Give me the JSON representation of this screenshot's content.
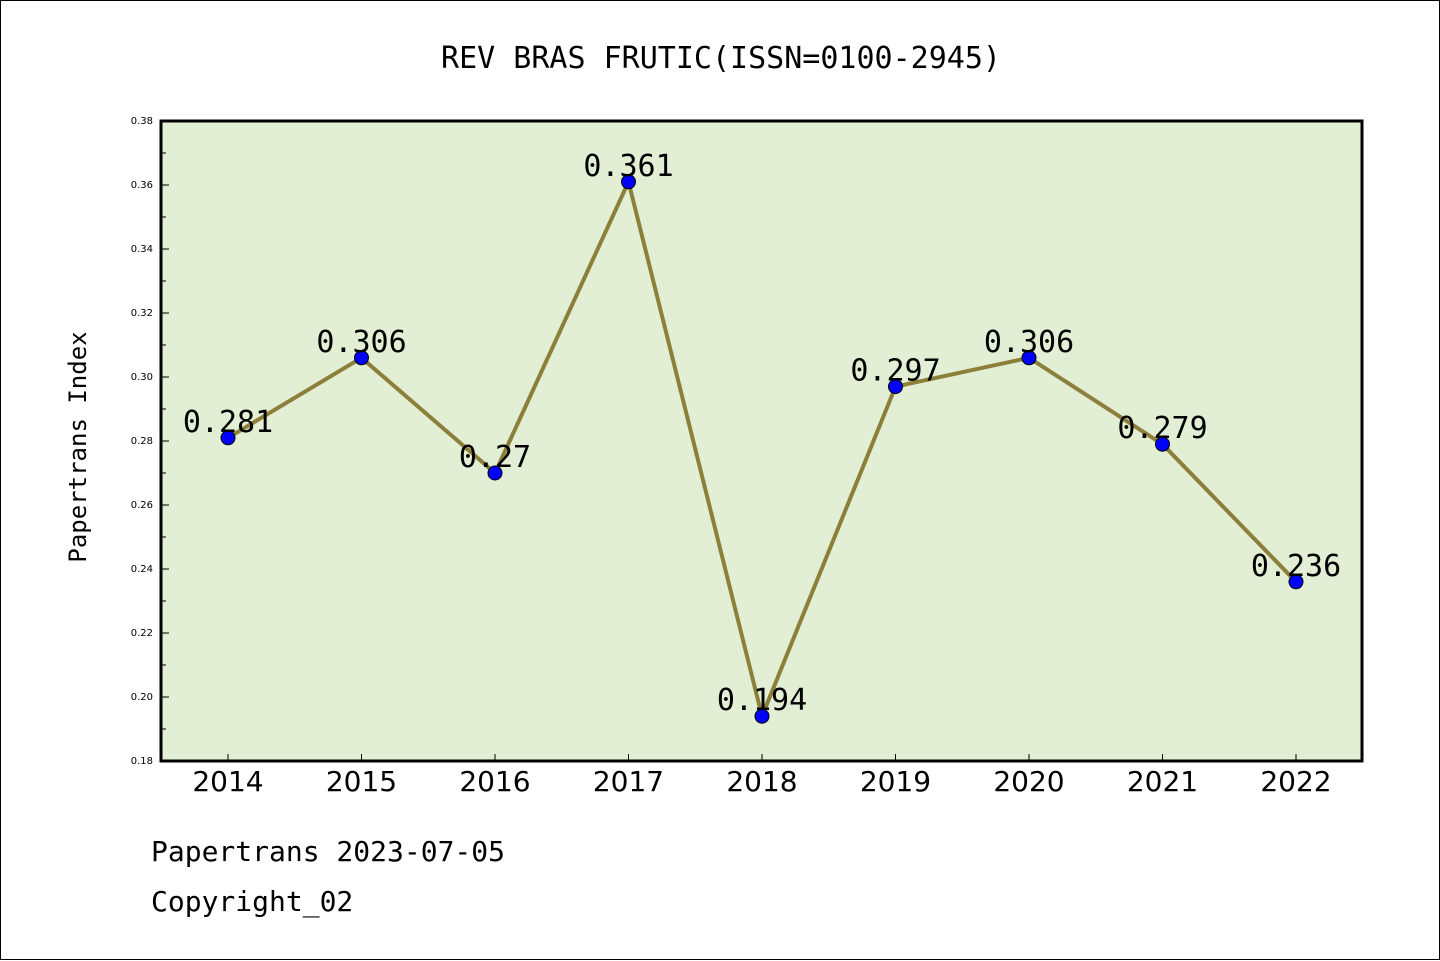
{
  "colors": {
    "plot_background": "#e2efd4",
    "line": "#8b7f3a",
    "marker": "#0000ff",
    "axis": "#000000"
  },
  "chart_data": {
    "type": "line",
    "title": "REV BRAS FRUTIC(ISSN=0100-2945)",
    "xlabel": "",
    "ylabel": "Papertrans Index",
    "categories": [
      "2014",
      "2015",
      "2016",
      "2017",
      "2018",
      "2019",
      "2020",
      "2021",
      "2022"
    ],
    "series": [
      {
        "values": [
          0.281,
          0.306,
          0.27,
          0.361,
          0.194,
          0.297,
          0.306,
          0.279,
          0.236
        ]
      }
    ],
    "data_labels": [
      "0.281",
      "0.306",
      "0.27",
      "0.361",
      "0.194",
      "0.297",
      "0.306",
      "0.279",
      "0.236"
    ],
    "ylim": [
      0.18,
      0.38
    ],
    "yticks": [
      0.18,
      0.2,
      0.22,
      0.24,
      0.26,
      0.28,
      0.3,
      0.32,
      0.34,
      0.36,
      0.38
    ],
    "ytick_labels": [
      "0.18",
      "0.20",
      "0.22",
      "0.24",
      "0.26",
      "0.28",
      "0.30",
      "0.32",
      "0.34",
      "0.36",
      "0.38"
    ],
    "grid": false,
    "legend": "none"
  },
  "footer": {
    "line1": "Papertrans 2023-07-05",
    "line2": "Copyright_02"
  }
}
